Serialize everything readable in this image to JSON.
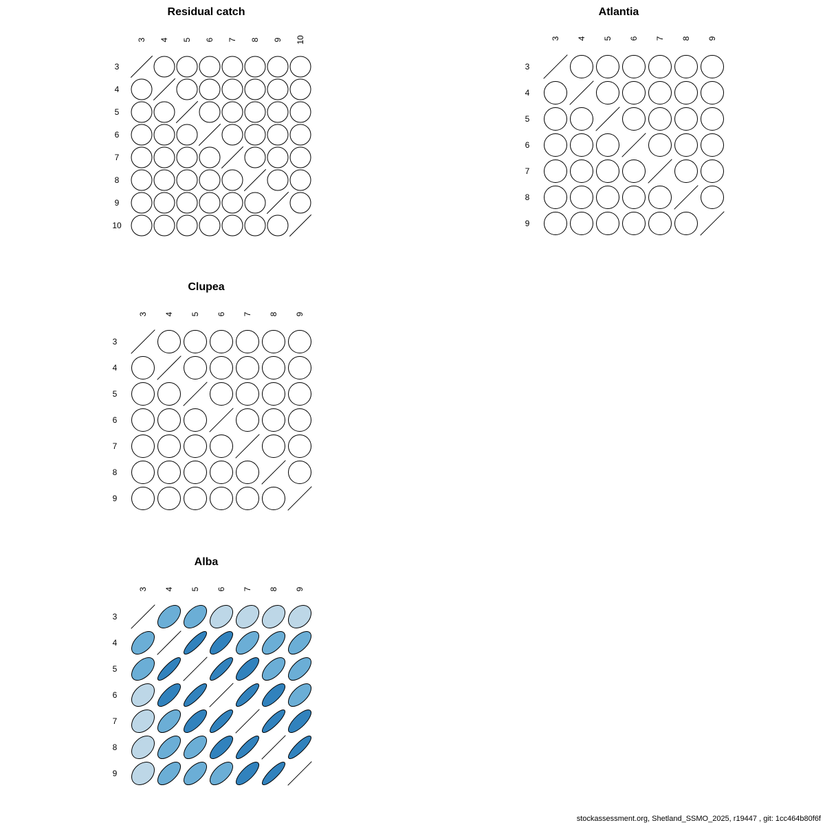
{
  "chart_data": [
    {
      "type": "correlation-ellipse-matrix",
      "title": "Residual catch",
      "labels": [
        "3",
        "4",
        "5",
        "6",
        "7",
        "8",
        "9",
        "10"
      ],
      "correlations": "all off-diagonal approximately 0"
    },
    {
      "type": "correlation-ellipse-matrix",
      "title": "Atlantia",
      "labels": [
        "3",
        "4",
        "5",
        "6",
        "7",
        "8",
        "9"
      ],
      "correlations": "all off-diagonal approximately 0"
    },
    {
      "type": "correlation-ellipse-matrix",
      "title": "Clupea",
      "labels": [
        "3",
        "4",
        "5",
        "6",
        "7",
        "8",
        "9"
      ],
      "correlations": "all off-diagonal approximately 0"
    },
    {
      "type": "correlation-ellipse-matrix",
      "title": "Alba",
      "labels": [
        "3",
        "4",
        "5",
        "6",
        "7",
        "8",
        "9"
      ],
      "matrix": [
        [
          1,
          0.5,
          0.5,
          0.4,
          0.35,
          0.35,
          0.3
        ],
        [
          0.5,
          1,
          0.85,
          0.75,
          0.6,
          0.6,
          0.6
        ],
        [
          0.5,
          0.85,
          1,
          0.85,
          0.75,
          0.6,
          0.6
        ],
        [
          0.4,
          0.75,
          0.85,
          1,
          0.85,
          0.75,
          0.6
        ],
        [
          0.35,
          0.6,
          0.75,
          0.85,
          1,
          0.85,
          0.75
        ],
        [
          0.35,
          0.6,
          0.6,
          0.75,
          0.85,
          1,
          0.85
        ],
        [
          0.3,
          0.6,
          0.6,
          0.6,
          0.75,
          0.85,
          1
        ]
      ]
    }
  ],
  "colors": {
    "zero": "#ffffff",
    "light": "#bdd7e7",
    "medium": "#6baed6",
    "dark": "#3182bd",
    "stroke": "#000000"
  },
  "footer": "stockassessment.org, Shetland_SSMO_2025, r19447 , git: 1cc464b80f6f"
}
